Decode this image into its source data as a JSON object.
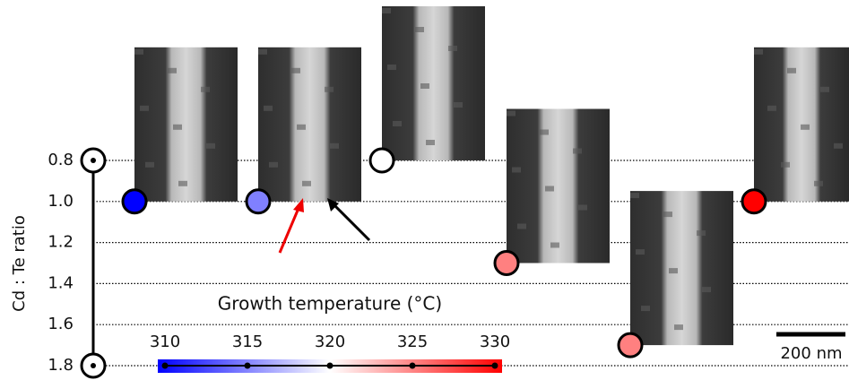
{
  "chart_data": {
    "type": "scatter",
    "y_label": "Cd : Te ratio",
    "ylim": [
      0.8,
      1.8
    ],
    "y_reversed": true,
    "yticks": [
      0.8,
      {
        "value": 1,
        "label": "1.0"
      },
      1.2,
      1.4,
      1.6,
      1.8
    ],
    "grid": true,
    "categories": [
      null,
      null,
      null,
      null,
      null,
      null
    ],
    "values": [
      1,
      1,
      0.8,
      1.3,
      1.7,
      1
    ],
    "temperatures": [
      310,
      315,
      320,
      325,
      325,
      330
    ],
    "colorbar": {
      "label": "Growth temperature (°C)",
      "clim": [
        310,
        330
      ],
      "cticks": [
        310,
        315,
        320,
        325,
        330
      ],
      "colormap": [
        "#0000ff",
        "#ffffff",
        "#ff0000"
      ]
    },
    "scale_bar": "200 nm"
  }
}
